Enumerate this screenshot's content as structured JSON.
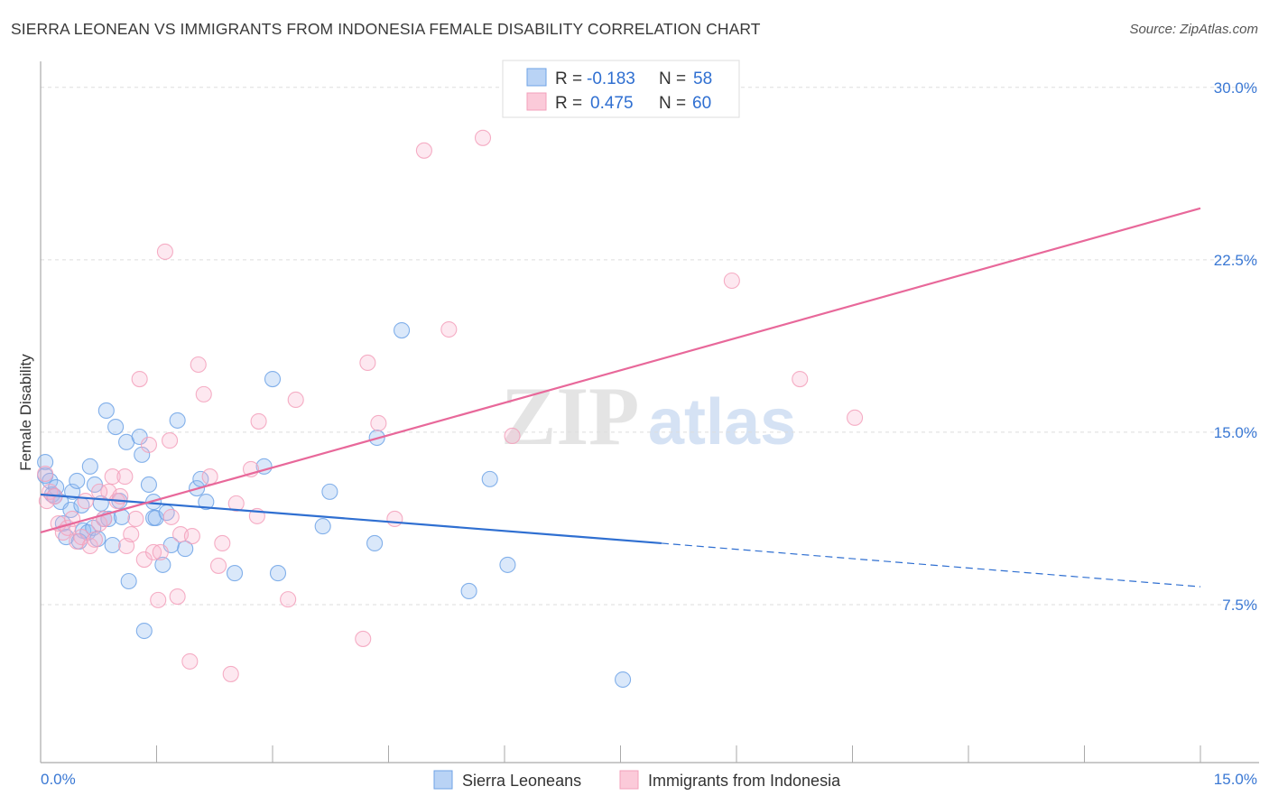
{
  "title": "SIERRA LEONEAN VS IMMIGRANTS FROM INDONESIA FEMALE DISABILITY CORRELATION CHART",
  "source": "Source: ZipAtlas.com",
  "watermark": "ZIPatlas",
  "chart_data": {
    "type": "scatter",
    "title": "SIERRA LEONEAN VS IMMIGRANTS FROM INDONESIA FEMALE DISABILITY CORRELATION CHART",
    "xlabel": "",
    "ylabel": "Female Disability",
    "xlim": [
      0,
      15
    ],
    "ylim": [
      0.63,
      31.05
    ],
    "x_tick_labels": [
      "0.0%",
      "15.0%"
    ],
    "y_ticks": [
      7.5,
      15.0,
      22.5,
      30.0
    ],
    "y_tick_labels": [
      "7.5%",
      "15.0%",
      "22.5%",
      "30.0%"
    ],
    "grid": "horizontal-dashed",
    "legend_stats": [
      {
        "r_label": "R =",
        "r_value": "-0.183",
        "n_label": "N =",
        "n_value": "58"
      },
      {
        "r_label": "R =",
        "r_value": "0.475",
        "n_label": "N =",
        "n_value": "60"
      }
    ],
    "series": [
      {
        "name": "Sierra Leoneans",
        "color": "#6fa3e6",
        "line_color": "#2f6fd1",
        "trend": {
          "x": [
            0,
            8.03,
            15
          ],
          "y": [
            12.29,
            10.17,
            8.28
          ],
          "solid_until": 8.03
        },
        "points": [
          [
            0.06,
            13.7
          ],
          [
            0.06,
            13.11
          ],
          [
            0.12,
            12.88
          ],
          [
            0.15,
            12.29
          ],
          [
            0.2,
            12.6
          ],
          [
            0.26,
            11.97
          ],
          [
            0.29,
            11.03
          ],
          [
            0.33,
            10.44
          ],
          [
            0.39,
            11.62
          ],
          [
            0.41,
            12.41
          ],
          [
            0.47,
            12.88
          ],
          [
            0.53,
            11.82
          ],
          [
            0.55,
            10.72
          ],
          [
            0.61,
            10.64
          ],
          [
            0.64,
            13.51
          ],
          [
            0.68,
            10.84
          ],
          [
            0.7,
            12.72
          ],
          [
            0.74,
            10.36
          ],
          [
            0.78,
            11.9
          ],
          [
            0.82,
            11.23
          ],
          [
            0.85,
            15.94
          ],
          [
            0.88,
            11.23
          ],
          [
            0.93,
            10.09
          ],
          [
            0.97,
            15.23
          ],
          [
            1.02,
            12.01
          ],
          [
            1.05,
            11.31
          ],
          [
            1.11,
            14.57
          ],
          [
            1.14,
            8.52
          ],
          [
            1.28,
            14.8
          ],
          [
            1.31,
            14.02
          ],
          [
            1.34,
            6.36
          ],
          [
            1.4,
            12.72
          ],
          [
            1.46,
            11.97
          ],
          [
            1.46,
            11.27
          ],
          [
            1.49,
            11.27
          ],
          [
            1.58,
            9.23
          ],
          [
            1.63,
            11.5
          ],
          [
            1.69,
            10.09
          ],
          [
            1.77,
            15.51
          ],
          [
            1.87,
            9.93
          ],
          [
            2.02,
            12.56
          ],
          [
            2.07,
            12.96
          ],
          [
            2.14,
            11.97
          ],
          [
            2.51,
            8.87
          ],
          [
            2.89,
            13.51
          ],
          [
            3.0,
            17.31
          ],
          [
            3.07,
            8.87
          ],
          [
            3.65,
            10.91
          ],
          [
            3.74,
            12.41
          ],
          [
            4.32,
            10.17
          ],
          [
            4.35,
            14.76
          ],
          [
            4.67,
            19.43
          ],
          [
            5.54,
            8.09
          ],
          [
            5.81,
            12.96
          ],
          [
            6.04,
            9.23
          ],
          [
            7.53,
            4.24
          ],
          [
            0.18,
            12.21
          ],
          [
            0.5,
            10.25
          ]
        ]
      },
      {
        "name": "Immigrants from Indonesia",
        "color": "#f3a0bb",
        "line_color": "#e8689a",
        "trend": {
          "x": [
            0,
            15
          ],
          "y": [
            10.64,
            24.74
          ]
        },
        "points": [
          [
            0.06,
            13.19
          ],
          [
            0.08,
            12.01
          ],
          [
            0.12,
            12.41
          ],
          [
            0.18,
            12.21
          ],
          [
            0.23,
            11.03
          ],
          [
            0.29,
            10.64
          ],
          [
            0.35,
            10.84
          ],
          [
            0.41,
            11.23
          ],
          [
            0.47,
            10.25
          ],
          [
            0.53,
            10.44
          ],
          [
            0.58,
            12.01
          ],
          [
            0.64,
            10.05
          ],
          [
            0.7,
            10.33
          ],
          [
            0.76,
            11.03
          ],
          [
            0.82,
            11.23
          ],
          [
            0.88,
            12.41
          ],
          [
            0.93,
            13.07
          ],
          [
            0.99,
            12.01
          ],
          [
            1.03,
            12.21
          ],
          [
            1.09,
            13.07
          ],
          [
            1.11,
            10.05
          ],
          [
            1.17,
            10.56
          ],
          [
            1.23,
            11.23
          ],
          [
            1.28,
            17.31
          ],
          [
            1.34,
            9.46
          ],
          [
            1.4,
            14.45
          ],
          [
            1.46,
            9.78
          ],
          [
            1.52,
            7.7
          ],
          [
            1.55,
            9.78
          ],
          [
            1.61,
            22.85
          ],
          [
            1.67,
            14.64
          ],
          [
            1.69,
            11.31
          ],
          [
            1.77,
            7.85
          ],
          [
            1.81,
            10.56
          ],
          [
            1.93,
            5.03
          ],
          [
            1.96,
            10.48
          ],
          [
            2.04,
            17.94
          ],
          [
            2.11,
            16.65
          ],
          [
            2.19,
            13.07
          ],
          [
            2.3,
            9.19
          ],
          [
            2.35,
            10.17
          ],
          [
            2.46,
            4.48
          ],
          [
            2.53,
            11.9
          ],
          [
            2.72,
            13.39
          ],
          [
            2.8,
            11.35
          ],
          [
            2.82,
            15.47
          ],
          [
            3.2,
            7.73
          ],
          [
            3.3,
            16.41
          ],
          [
            4.17,
            6.01
          ],
          [
            4.23,
            18.02
          ],
          [
            4.37,
            15.39
          ],
          [
            4.58,
            11.23
          ],
          [
            4.96,
            27.25
          ],
          [
            5.28,
            19.47
          ],
          [
            5.72,
            27.8
          ],
          [
            6.1,
            14.84
          ],
          [
            8.94,
            21.59
          ],
          [
            9.82,
            17.31
          ],
          [
            10.53,
            15.63
          ],
          [
            0.76,
            12.41
          ]
        ]
      }
    ]
  }
}
